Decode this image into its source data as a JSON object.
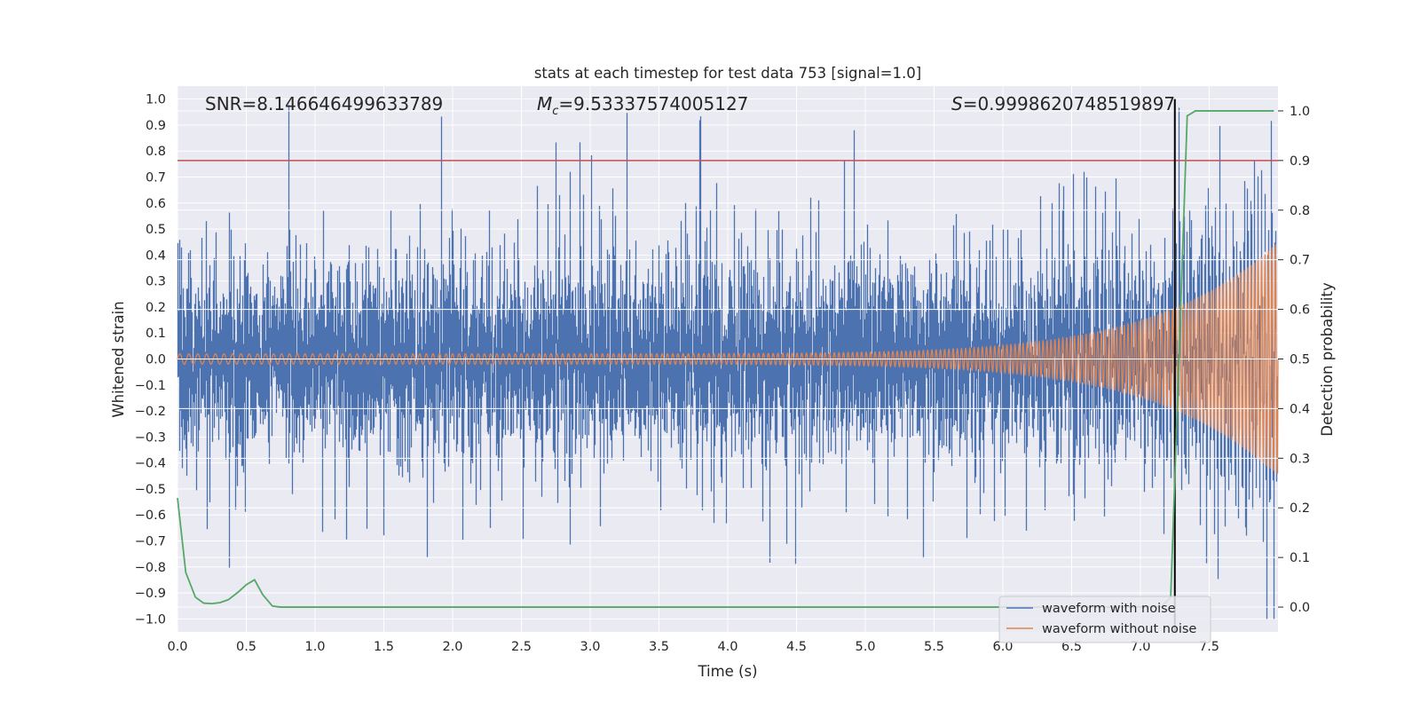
{
  "chart_data": {
    "type": "line",
    "title": "stats at each timestep for test data 753 [signal=1.0]",
    "xlabel": "Time (s)",
    "ylabel": "Whitened strain",
    "y2label": "Detection probability",
    "xlim": [
      0.0,
      8.0
    ],
    "ylim": [
      -1.05,
      1.05
    ],
    "y2lim": [
      -0.05,
      1.05
    ],
    "x_ticks": [
      0.0,
      0.5,
      1.0,
      1.5,
      2.0,
      2.5,
      3.0,
      3.5,
      4.0,
      4.5,
      5.0,
      5.5,
      6.0,
      6.5,
      7.0,
      7.5
    ],
    "x_tick_labels": [
      "0.0",
      "0.5",
      "1.0",
      "1.5",
      "2.0",
      "2.5",
      "3.0",
      "3.5",
      "4.0",
      "4.5",
      "5.0",
      "5.5",
      "6.0",
      "6.5",
      "7.0",
      "7.5"
    ],
    "y_ticks": [
      1.0,
      0.9,
      0.8,
      0.7,
      0.6,
      0.5,
      0.4,
      0.3,
      0.2,
      0.1,
      0.0,
      -0.1,
      -0.2,
      -0.3,
      -0.4,
      -0.5,
      -0.6,
      -0.7,
      -0.8,
      -0.9,
      -1.0
    ],
    "y_tick_labels": [
      "1.0",
      "0.9",
      "0.8",
      "0.7",
      "0.6",
      "0.5",
      "0.4",
      "0.3",
      "0.2",
      "0.1",
      "0.0",
      "−0.1",
      "−0.2",
      "−0.3",
      "−0.4",
      "−0.5",
      "−0.6",
      "−0.7",
      "−0.8",
      "−0.9",
      "−1.0"
    ],
    "y2_ticks": [
      1.0,
      0.9,
      0.8,
      0.7,
      0.6,
      0.5,
      0.4,
      0.3,
      0.2,
      0.1,
      0.0
    ],
    "y2_tick_labels": [
      "1.0",
      "0.9",
      "0.8",
      "0.7",
      "0.6",
      "0.5",
      "0.4",
      "0.3",
      "0.2",
      "0.1",
      "0.0"
    ],
    "annotations": {
      "snr": "SNR=8.146646499633789",
      "mc_symbol": "M",
      "mc_subscript": "c",
      "mc_value": "=9.53337574005127",
      "s_symbol": "S",
      "s_value": "=0.9998620748519897"
    },
    "threshold_line": {
      "value": 0.9,
      "axis": "y2",
      "color": "#c44e52"
    },
    "detection_time": 7.25,
    "detection_line_color": "#000000",
    "series": [
      {
        "name": "waveform with noise",
        "color": "#4c72b0",
        "axis": "y",
        "kind": "noisy-strain",
        "sample_rate_hz": 1024,
        "amplitude_range": [
          -1.0,
          1.0
        ],
        "peak_times": [
          0.81,
          1.92,
          2.75,
          3.27,
          3.8,
          4.92,
          7.28,
          7.95
        ]
      },
      {
        "name": "waveform without noise",
        "color": "#dd8452",
        "axis": "y",
        "kind": "chirp",
        "start_amplitude": 0.02,
        "end_amplitude": 0.45,
        "start_frequency_hz": 15,
        "end_frequency_hz": 40
      },
      {
        "name": "detection probability",
        "color": "#55a868",
        "axis": "y2",
        "x": [
          0.0,
          0.06,
          0.13,
          0.19,
          0.25,
          0.31,
          0.37,
          0.44,
          0.5,
          0.56,
          0.62,
          0.69,
          0.75,
          0.81,
          1.0,
          2.0,
          3.0,
          4.0,
          5.0,
          6.0,
          7.0,
          7.15,
          7.22,
          7.28,
          7.34,
          7.4,
          7.5,
          7.97
        ],
        "values": [
          0.22,
          0.07,
          0.02,
          0.008,
          0.007,
          0.009,
          0.015,
          0.03,
          0.045,
          0.055,
          0.025,
          0.002,
          0.0,
          0.0,
          0.0,
          0.0,
          0.0,
          0.0,
          0.0,
          0.0,
          0.0,
          0.0,
          0.02,
          0.5,
          0.99,
          1.0,
          1.0,
          1.0
        ]
      }
    ],
    "legend": {
      "placement": "lower-right",
      "entries": [
        "waveform with noise",
        "waveform without noise"
      ]
    },
    "colors": {
      "background": "#eaeaf2",
      "grid": "#ffffff",
      "noise": "#4c72b0",
      "clean": "#dd8452",
      "probability": "#55a868",
      "threshold": "#c44e52",
      "detection": "#000000"
    }
  }
}
